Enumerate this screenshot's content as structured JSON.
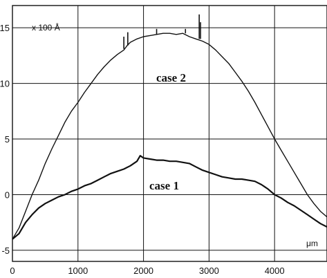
{
  "chart_data": {
    "type": "line",
    "title": "",
    "xlabel": "",
    "ylabel": "",
    "xlim": [
      0,
      4800
    ],
    "ylim": [
      -6,
      17
    ],
    "grid": true,
    "x_ticks": [
      "0",
      "1000",
      "2000",
      "3000",
      "4000"
    ],
    "y_ticks": [
      "15",
      "10",
      "5",
      "0",
      "-5"
    ],
    "unit_y": "x 100 Å",
    "unit_x": "μm",
    "line_color": "#111111",
    "series": [
      {
        "name": "case 2",
        "stroke": 1.4,
        "points": [
          [
            0,
            -4.0
          ],
          [
            100,
            -3.0
          ],
          [
            200,
            -1.5
          ],
          [
            300,
            0.0
          ],
          [
            400,
            1.3
          ],
          [
            500,
            2.8
          ],
          [
            600,
            4.1
          ],
          [
            700,
            5.3
          ],
          [
            800,
            6.5
          ],
          [
            900,
            7.5
          ],
          [
            1000,
            8.3
          ],
          [
            1100,
            9.2
          ],
          [
            1200,
            10.0
          ],
          [
            1300,
            10.8
          ],
          [
            1400,
            11.5
          ],
          [
            1500,
            12.1
          ],
          [
            1600,
            12.6
          ],
          [
            1700,
            13.0
          ],
          [
            1750,
            13.4
          ],
          [
            1800,
            13.7
          ],
          [
            1900,
            14.0
          ],
          [
            2000,
            14.2
          ],
          [
            2100,
            14.3
          ],
          [
            2200,
            14.4
          ],
          [
            2300,
            14.5
          ],
          [
            2400,
            14.5
          ],
          [
            2500,
            14.4
          ],
          [
            2600,
            14.5
          ],
          [
            2700,
            14.2
          ],
          [
            2800,
            14.0
          ],
          [
            2900,
            13.8
          ],
          [
            3000,
            13.5
          ],
          [
            3100,
            13.0
          ],
          [
            3200,
            12.4
          ],
          [
            3300,
            11.8
          ],
          [
            3400,
            11.0
          ],
          [
            3500,
            10.2
          ],
          [
            3600,
            9.3
          ],
          [
            3700,
            8.3
          ],
          [
            3800,
            7.2
          ],
          [
            3900,
            6.1
          ],
          [
            4000,
            5.0
          ],
          [
            4100,
            4.0
          ],
          [
            4200,
            3.0
          ],
          [
            4300,
            2.0
          ],
          [
            4400,
            1.0
          ],
          [
            4500,
            0.0
          ],
          [
            4600,
            -0.8
          ],
          [
            4700,
            -1.5
          ],
          [
            4800,
            -2.0
          ]
        ]
      },
      {
        "name": "case 1",
        "stroke": 2.2,
        "points": [
          [
            0,
            -4.0
          ],
          [
            100,
            -3.5
          ],
          [
            200,
            -2.5
          ],
          [
            300,
            -1.8
          ],
          [
            400,
            -1.2
          ],
          [
            500,
            -0.8
          ],
          [
            600,
            -0.5
          ],
          [
            700,
            -0.2
          ],
          [
            800,
            0.0
          ],
          [
            900,
            0.3
          ],
          [
            1000,
            0.5
          ],
          [
            1100,
            0.8
          ],
          [
            1200,
            1.0
          ],
          [
            1300,
            1.3
          ],
          [
            1400,
            1.6
          ],
          [
            1500,
            1.9
          ],
          [
            1600,
            2.1
          ],
          [
            1700,
            2.3
          ],
          [
            1800,
            2.6
          ],
          [
            1900,
            3.0
          ],
          [
            1950,
            3.5
          ],
          [
            2000,
            3.3
          ],
          [
            2100,
            3.2
          ],
          [
            2200,
            3.1
          ],
          [
            2300,
            3.1
          ],
          [
            2400,
            3.0
          ],
          [
            2500,
            3.0
          ],
          [
            2600,
            2.9
          ],
          [
            2700,
            2.8
          ],
          [
            2800,
            2.5
          ],
          [
            2900,
            2.2
          ],
          [
            3000,
            2.0
          ],
          [
            3100,
            1.8
          ],
          [
            3200,
            1.6
          ],
          [
            3300,
            1.5
          ],
          [
            3400,
            1.4
          ],
          [
            3500,
            1.4
          ],
          [
            3600,
            1.3
          ],
          [
            3700,
            1.2
          ],
          [
            3800,
            0.9
          ],
          [
            3900,
            0.5
          ],
          [
            4000,
            0.0
          ],
          [
            4100,
            -0.3
          ],
          [
            4200,
            -0.7
          ],
          [
            4300,
            -1.0
          ],
          [
            4400,
            -1.4
          ],
          [
            4500,
            -1.8
          ],
          [
            4600,
            -2.2
          ],
          [
            4700,
            -2.6
          ],
          [
            4800,
            -2.9
          ]
        ]
      }
    ],
    "spikes": [
      {
        "x": 1700,
        "y0": 13.1,
        "y1": 14.2
      },
      {
        "x": 1760,
        "y0": 13.4,
        "y1": 14.6
      },
      {
        "x": 2200,
        "y0": 14.4,
        "y1": 14.9
      },
      {
        "x": 2640,
        "y0": 14.5,
        "y1": 14.9
      },
      {
        "x": 2850,
        "y0": 14.0,
        "y1": 16.2
      },
      {
        "x": 2870,
        "y0": 14.0,
        "y1": 15.5
      }
    ]
  }
}
